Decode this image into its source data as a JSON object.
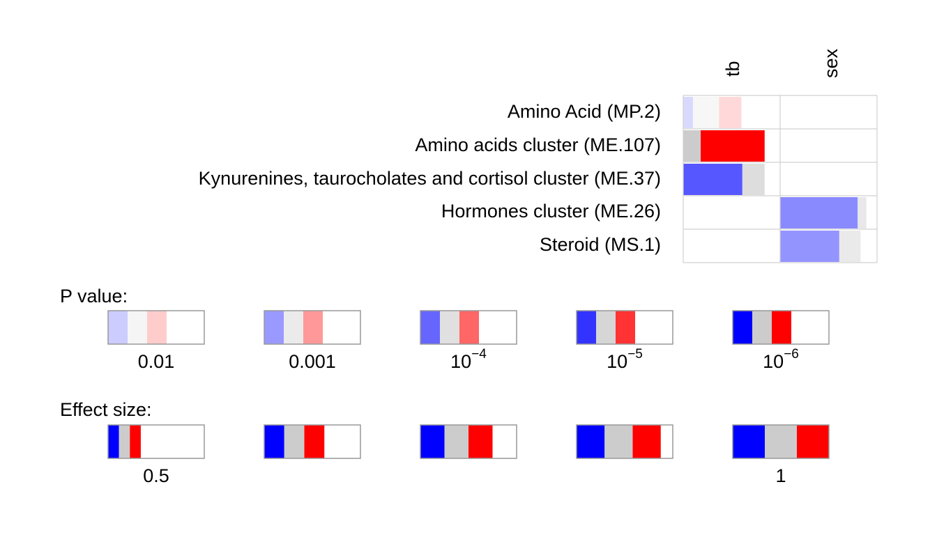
{
  "colors": {
    "positive": "#ff0000",
    "negative": "#0000ff",
    "ci": "#cccccc",
    "grid": "#d0d0d0",
    "frame": "#999999"
  },
  "chart_data": {
    "type": "heatmap",
    "description_free": true,
    "columns": [
      "tb",
      "sex"
    ],
    "rows": [
      "Amino Acid (MP.2)",
      "Amino acids cluster (ME.107)",
      "Kynurenines, taurocholates and cortisol cluster (ME.37)",
      "Hormones cluster (ME.26)",
      "Steroid (MS.1)"
    ],
    "max_effect": 1.25,
    "cells": [
      [
        {
          "sign": 0,
          "p": 0.02,
          "ci_low": 0.0,
          "ci_high": 0.6,
          "neg_end": 0.1,
          "pos_start": 0.37
        },
        null
      ],
      [
        {
          "sign": 1,
          "p": 1e-07,
          "ci_low": 0.0,
          "ci_high": 0.18,
          "est": 0.84
        },
        null
      ],
      [
        {
          "sign": -1,
          "p": 5e-05,
          "est": 0.61,
          "ci_high": 0.84
        },
        null
      ],
      [
        null,
        {
          "sign": -1,
          "p": 0.0005,
          "est": 0.8,
          "ci_high": 0.89
        }
      ],
      [
        null,
        {
          "sign": -1,
          "p": 0.0008,
          "est": 0.61,
          "ci_high": 0.83
        }
      ]
    ],
    "legend": {
      "pvalue": {
        "title": "P value:",
        "items": [
          {
            "p": 0.01,
            "base": "0.01",
            "exp": ""
          },
          {
            "p": 0.001,
            "base": "0.001",
            "exp": ""
          },
          {
            "p": 0.0001,
            "base": "10",
            "exp": "−4"
          },
          {
            "p": 1e-05,
            "base": "10",
            "exp": "−5"
          },
          {
            "p": 1e-06,
            "base": "10",
            "exp": "−6"
          }
        ]
      },
      "effect": {
        "title": "Effect size:",
        "items": [
          {
            "effect": 0.5,
            "label": "0.5"
          },
          {
            "effect": 0.625,
            "label": ""
          },
          {
            "effect": 0.75,
            "label": ""
          },
          {
            "effect": 0.875,
            "label": ""
          },
          {
            "effect": 1.0,
            "label": "1"
          }
        ]
      }
    }
  }
}
